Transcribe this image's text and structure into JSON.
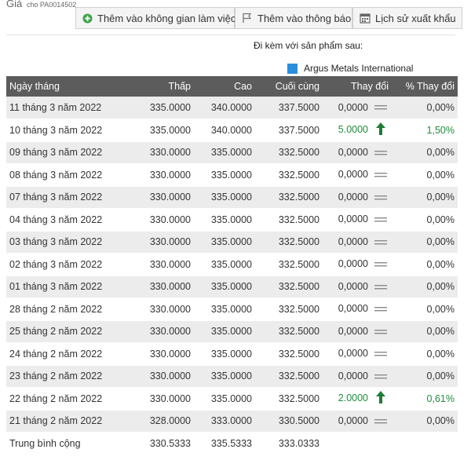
{
  "header": {
    "gia": "Giá",
    "code": "cho PA0014502",
    "buttons": [
      {
        "label": "Thêm vào không gian làm việc",
        "icon": "plus-icon"
      },
      {
        "label": "Thêm vào thông báo",
        "icon": "flag-icon"
      },
      {
        "label": "Lịch sử xuất khẩu",
        "icon": "calendar-icon"
      }
    ]
  },
  "attached_label": "Đi kèm với sản phẩm sau:",
  "legend": {
    "label": "Argus Metals International",
    "color": "#2b8fde"
  },
  "colors": {
    "header_bg": "#5c5c5c",
    "positive": "#1e8c3a",
    "stripe": "#ececec"
  },
  "table": {
    "columns": [
      "Ngày tháng",
      "Thấp",
      "Cao",
      "Cuối cùng",
      "Thay đổi",
      "% Thay đổi"
    ],
    "rows": [
      {
        "date": "11 tháng 3 năm 2022",
        "low": "335.0000",
        "high": "340.0000",
        "last": "337.5000",
        "change": "0,0000",
        "pct": "0,00%",
        "trend": "flat"
      },
      {
        "date": "10 tháng 3 năm 2022",
        "low": "335.0000",
        "high": "340.0000",
        "last": "337.5000",
        "change": "5.0000",
        "pct": "1,50%",
        "trend": "up"
      },
      {
        "date": "09 tháng 3 năm 2022",
        "low": "330.0000",
        "high": "335.0000",
        "last": "332.5000",
        "change": "0,0000",
        "pct": "0,00%",
        "trend": "flat"
      },
      {
        "date": "08 tháng 3 năm 2022",
        "low": "330.0000",
        "high": "335.0000",
        "last": "332.5000",
        "change": "0,0000",
        "pct": "0,00%",
        "trend": "flat"
      },
      {
        "date": "07 tháng 3 năm 2022",
        "low": "330.0000",
        "high": "335.0000",
        "last": "332.5000",
        "change": "0,0000",
        "pct": "0,00%",
        "trend": "flat"
      },
      {
        "date": "04 tháng 3 năm 2022",
        "low": "330.0000",
        "high": "335.0000",
        "last": "332.5000",
        "change": "0,0000",
        "pct": "0,00%",
        "trend": "flat"
      },
      {
        "date": "03 tháng 3 năm 2022",
        "low": "330.0000",
        "high": "335.0000",
        "last": "332.5000",
        "change": "0,0000",
        "pct": "0,00%",
        "trend": "flat"
      },
      {
        "date": "02 tháng 3 năm 2022",
        "low": "330.0000",
        "high": "335.0000",
        "last": "332.5000",
        "change": "0,0000",
        "pct": "0,00%",
        "trend": "flat"
      },
      {
        "date": "01 tháng 3 năm 2022",
        "low": "330.0000",
        "high": "335.0000",
        "last": "332.5000",
        "change": "0,0000",
        "pct": "0,00%",
        "trend": "flat"
      },
      {
        "date": "28 tháng 2 năm 2022",
        "low": "330.0000",
        "high": "335.0000",
        "last": "332.5000",
        "change": "0,0000",
        "pct": "0,00%",
        "trend": "flat"
      },
      {
        "date": "25 tháng 2 năm 2022",
        "low": "330.0000",
        "high": "335.0000",
        "last": "332.5000",
        "change": "0,0000",
        "pct": "0,00%",
        "trend": "flat"
      },
      {
        "date": "24 tháng 2 năm 2022",
        "low": "330.0000",
        "high": "335.0000",
        "last": "332.5000",
        "change": "0,0000",
        "pct": "0,00%",
        "trend": "flat"
      },
      {
        "date": "23 tháng 2 năm 2022",
        "low": "330.0000",
        "high": "335.0000",
        "last": "332.5000",
        "change": "0,0000",
        "pct": "0,00%",
        "trend": "flat"
      },
      {
        "date": "22 tháng 2 năm 2022",
        "low": "330.0000",
        "high": "335.0000",
        "last": "332.5000",
        "change": "2.0000",
        "pct": "0,61%",
        "trend": "up"
      },
      {
        "date": "21 tháng 2 năm 2022",
        "low": "328.0000",
        "high": "333.0000",
        "last": "330.5000",
        "change": "0,0000",
        "pct": "0,00%",
        "trend": "flat"
      }
    ],
    "average": {
      "label": "Trung bình cộng",
      "low": "330.5333",
      "high": "335.5333",
      "last": "333.0333"
    }
  }
}
